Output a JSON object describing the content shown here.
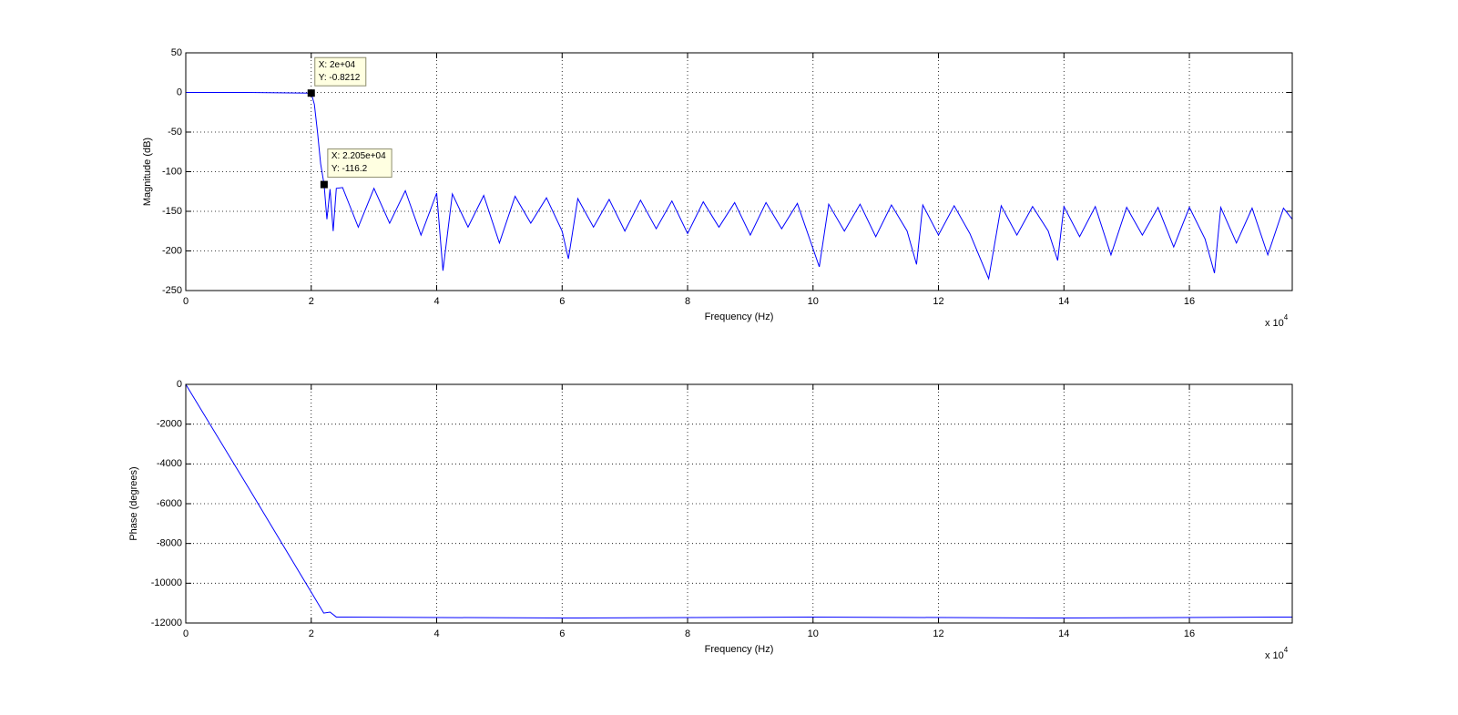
{
  "chart_data": [
    {
      "type": "line",
      "color": "#0000ff",
      "grid": true,
      "xlabel": "Frequency (Hz)",
      "ylabel": "Magnitude (dB)",
      "x_scale_label": "x 10",
      "x_scale_exponent": "4",
      "xlim": [
        0,
        176400
      ],
      "ylim": [
        -250,
        50
      ],
      "xticks": [
        0,
        {
          "value": 20000,
          "label": "2"
        },
        {
          "value": 40000,
          "label": "4"
        },
        {
          "value": 60000,
          "label": "6"
        },
        {
          "value": 80000,
          "label": "8"
        },
        {
          "value": 100000,
          "label": "10"
        },
        {
          "value": 120000,
          "label": "12"
        },
        {
          "value": 140000,
          "label": "14"
        },
        {
          "value": 160000,
          "label": "16"
        }
      ],
      "yticks": [
        50,
        0,
        -50,
        -100,
        -150,
        -200,
        -250
      ],
      "x": [
        0,
        10000,
        20000,
        20500,
        21000,
        21500,
        22050,
        22500,
        23000,
        23500,
        24000,
        25000,
        27500,
        30000,
        32500,
        35000,
        37500,
        40000,
        41000,
        42500,
        45000,
        47500,
        50000,
        52500,
        55000,
        57500,
        60000,
        61000,
        62500,
        65000,
        67500,
        70000,
        72500,
        75000,
        77500,
        80000,
        82500,
        85000,
        87500,
        90000,
        92500,
        95000,
        97500,
        101000,
        102500,
        105000,
        107500,
        110000,
        112500,
        115000,
        116500,
        117500,
        120000,
        122500,
        125000,
        128000,
        130000,
        132500,
        135000,
        137500,
        139000,
        140000,
        142500,
        145000,
        147500,
        150000,
        152500,
        155000,
        157500,
        160000,
        162500,
        164000,
        165000,
        167500,
        170000,
        172500,
        175000,
        176400
      ],
      "values": [
        0,
        0,
        -0.8212,
        -15,
        -50,
        -90,
        -116.2,
        -160,
        -122,
        -175,
        -121,
        -120,
        -170,
        -121,
        -165,
        -124,
        -180,
        -127,
        -225,
        -128,
        -170,
        -130,
        -190,
        -131,
        -165,
        -133,
        -175,
        -210,
        -134,
        -170,
        -135,
        -175,
        -136,
        -172,
        -137,
        -178,
        -138,
        -170,
        -139,
        -180,
        -139,
        -172,
        -140,
        -220,
        -141,
        -175,
        -141,
        -182,
        -142,
        -175,
        -217,
        -142,
        -180,
        -143,
        -178,
        -235,
        -143,
        -180,
        -144,
        -175,
        -212,
        -144,
        -182,
        -144,
        -205,
        -145,
        -180,
        -145,
        -195,
        -145,
        -185,
        -228,
        -145,
        -190,
        -146,
        -205,
        -146,
        -160
      ],
      "annotations": [
        {
          "x": 20000,
          "y": -0.8212,
          "text_x": "X: 2e+04",
          "text_y": "Y: -0.8212"
        },
        {
          "x": 22050,
          "y": -116.2,
          "text_x": "X: 2.205e+04",
          "text_y": "Y: -116.2"
        }
      ]
    },
    {
      "type": "line",
      "color": "#0000ff",
      "grid": true,
      "xlabel": "Frequency (Hz)",
      "ylabel": "Phase (degrees)",
      "x_scale_label": "x 10",
      "x_scale_exponent": "4",
      "xlim": [
        0,
        176400
      ],
      "ylim": [
        -12000,
        0
      ],
      "xticks": [
        0,
        {
          "value": 20000,
          "label": "2"
        },
        {
          "value": 40000,
          "label": "4"
        },
        {
          "value": 60000,
          "label": "6"
        },
        {
          "value": 80000,
          "label": "8"
        },
        {
          "value": 100000,
          "label": "10"
        },
        {
          "value": 120000,
          "label": "12"
        },
        {
          "value": 140000,
          "label": "14"
        },
        {
          "value": 160000,
          "label": "16"
        }
      ],
      "yticks": [
        0,
        -2000,
        -4000,
        -6000,
        -8000,
        -10000,
        -12000
      ],
      "x": [
        0,
        10000,
        20000,
        22000,
        23000,
        24000,
        60000,
        100000,
        140000,
        176400
      ],
      "values": [
        0,
        -5200,
        -10450,
        -11500,
        -11450,
        -11700,
        -11750,
        -11700,
        -11750,
        -11700
      ]
    }
  ]
}
